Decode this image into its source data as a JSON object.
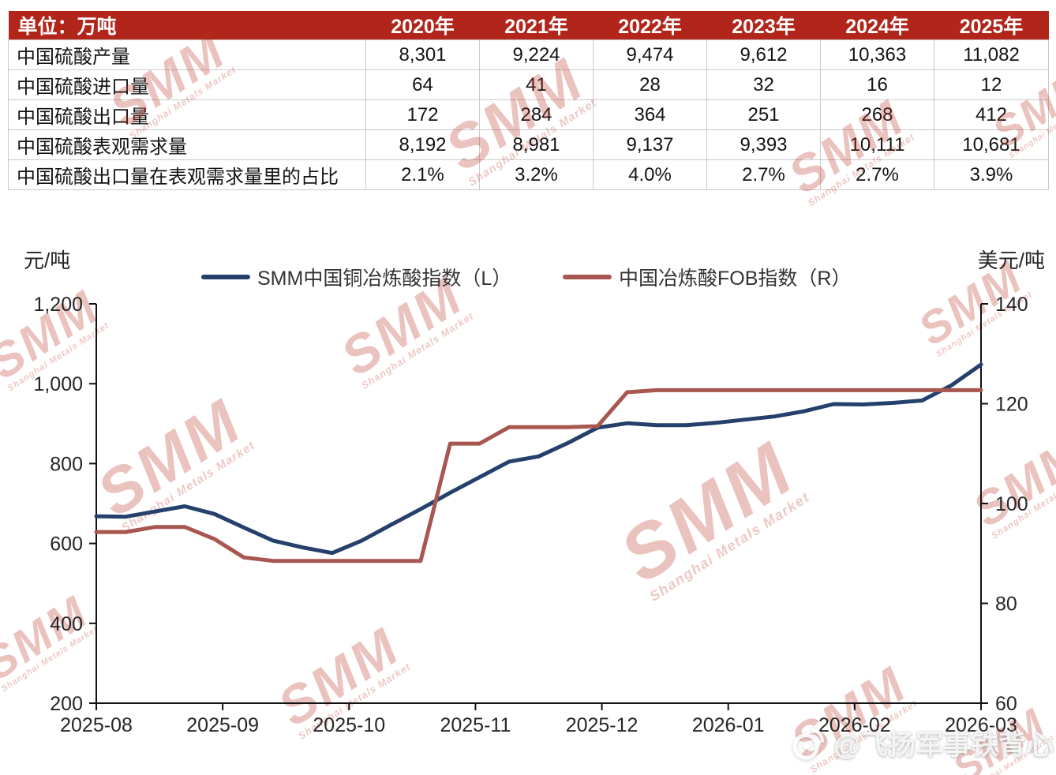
{
  "table": {
    "unit_header": "单位：万吨",
    "year_headers": [
      "2020年",
      "2021年",
      "2022年",
      "2023年",
      "2024年",
      "2025年"
    ],
    "rows": [
      {
        "label": "中国硫酸产量",
        "values": [
          "8,301",
          "9,224",
          "9,474",
          "9,612",
          "10,363",
          "11,082"
        ]
      },
      {
        "label": "中国硫酸进口量",
        "values": [
          "64",
          "41",
          "28",
          "32",
          "16",
          "12"
        ]
      },
      {
        "label": "中国硫酸出口量",
        "values": [
          "172",
          "284",
          "364",
          "251",
          "268",
          "412"
        ]
      },
      {
        "label": "中国硫酸表观需求量",
        "values": [
          "8,192",
          "8,981",
          "9,137",
          "9,393",
          "10,111",
          "10,681"
        ]
      },
      {
        "label": "中国硫酸出口量在表观需求量里的占比",
        "values": [
          "2.1%",
          "3.2%",
          "4.0%",
          "2.7%",
          "2.7%",
          "3.9%"
        ]
      }
    ],
    "header_bg": "#b2251a"
  },
  "chart_data": {
    "type": "line",
    "x_tick_labels": [
      "2025-08",
      "2025-09",
      "2025-10",
      "2025-11",
      "2025-12",
      "2026-01",
      "2026-02",
      "2026-03"
    ],
    "left_axis": {
      "unit": "元/吨",
      "range": [
        200,
        1200
      ],
      "ticks": [
        1200,
        1000,
        800,
        600,
        400,
        200
      ],
      "tick_labels": [
        "1,200",
        "1,000",
        "800",
        "600",
        "400",
        "200"
      ]
    },
    "right_axis": {
      "unit": "美元/吨",
      "range": [
        60,
        140
      ],
      "ticks": [
        140,
        120,
        100,
        80,
        60
      ],
      "tick_labels": [
        "140",
        "120",
        "100",
        "80",
        "60"
      ]
    },
    "grid": false,
    "legend_position": "top",
    "series": [
      {
        "name": "SMM中国铜冶炼酸指数（L）",
        "axis": "left",
        "color": "#24406b",
        "values": [
          668,
          667,
          680,
          693,
          674,
          640,
          607,
          590,
          576,
          607,
          647,
          686,
          727,
          766,
          805,
          818,
          852,
          890,
          901,
          896,
          896,
          902,
          910,
          918,
          931,
          949,
          948,
          952,
          958,
          996,
          1048
        ]
      },
      {
        "name": "中国冶炼酸FOB指数（R）",
        "axis": "right",
        "color": "#a85750",
        "values": [
          94.3,
          94.3,
          95.3,
          95.3,
          92.9,
          89.2,
          88.5,
          88.5,
          88.5,
          88.5,
          88.5,
          88.5,
          112,
          112,
          115.3,
          115.3,
          115.3,
          115.5,
          122.3,
          122.7,
          122.7,
          122.7,
          122.7,
          122.7,
          122.7,
          122.7,
          122.7,
          122.7,
          122.7,
          122.7,
          122.7
        ]
      }
    ]
  },
  "watermark": {
    "brand": "SMM",
    "brand_sub": "Shanghai Metals Market",
    "credit": "@飞扬军事铁背心"
  }
}
